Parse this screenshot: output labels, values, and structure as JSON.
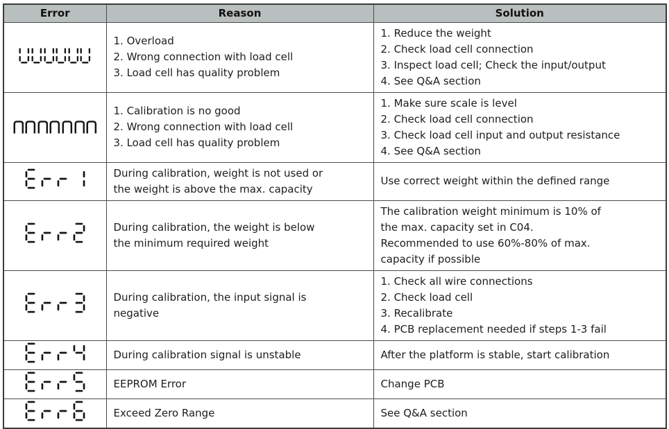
{
  "table": {
    "headers": [
      "Error",
      "Reason",
      "Solution"
    ],
    "header_bg": "#b9bfbe",
    "border_color": "#3a3a3a",
    "lcd_color": "#141414",
    "rows": [
      {
        "error_code": "UUUUUU",
        "reason": [
          "1. Overload",
          "2. Wrong connection with load cell",
          "3. Load cell has quality problem"
        ],
        "solution": [
          "1. Reduce the weight",
          "2. Check load cell connection",
          "3. Inspect load cell; Check the input/output",
          "4. See Q&A section"
        ]
      },
      {
        "error_code": "nnnnnnn",
        "reason": [
          "1. Calibration is no good",
          "2. Wrong connection with load cell",
          "3. Load cell has quality problem"
        ],
        "solution": [
          "1. Make sure scale is level",
          "2. Check load cell connection",
          "3. Check load cell input and output resistance",
          "4. See Q&A section"
        ]
      },
      {
        "error_code": "Err1",
        "reason": [
          "During calibration, weight is not used or",
          "the weight is above the max. capacity"
        ],
        "solution": [
          "Use correct weight within the defined range"
        ]
      },
      {
        "error_code": "Err2",
        "reason": [
          "During calibration, the weight is below",
          "the minimum required weight"
        ],
        "solution": [
          "The calibration weight minimum is 10% of",
          "the max. capacity set in C04.",
          "Recommended to use 60%-80% of max.",
          "capacity if possible"
        ]
      },
      {
        "error_code": "Err3",
        "reason": [
          "During calibration, the input signal is",
          "negative"
        ],
        "solution": [
          "1. Check all wire connections",
          "2. Check load cell",
          "3. Recalibrate",
          "4. PCB replacement needed if steps 1-3 fail"
        ]
      },
      {
        "error_code": "Err4",
        "reason": [
          "During calibration signal is unstable"
        ],
        "solution": [
          "After the platform is stable, start calibration"
        ]
      },
      {
        "error_code": "Err5",
        "reason": [
          "EEPROM Error"
        ],
        "solution": [
          "Change PCB"
        ]
      },
      {
        "error_code": "Err6",
        "reason": [
          "Exceed Zero Range"
        ],
        "solution": [
          "See Q&A section"
        ]
      }
    ]
  }
}
